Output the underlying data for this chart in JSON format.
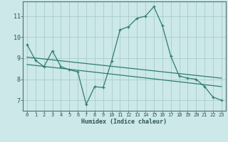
{
  "xlabel": "Humidex (Indice chaleur)",
  "ylabel": "",
  "bg_color": "#cce8e8",
  "grid_color": "#aacccc",
  "line_color": "#2e7d6e",
  "xlim": [
    -0.5,
    23.5
  ],
  "ylim": [
    6.5,
    11.7
  ],
  "yticks": [
    7,
    8,
    9,
    10,
    11
  ],
  "xticks": [
    0,
    1,
    2,
    3,
    4,
    5,
    6,
    7,
    8,
    9,
    10,
    11,
    12,
    13,
    14,
    15,
    16,
    17,
    18,
    19,
    20,
    21,
    22,
    23
  ],
  "line1_x": [
    0,
    1,
    2,
    3,
    4,
    5,
    6,
    7,
    8,
    9,
    10,
    11,
    12,
    13,
    14,
    15,
    16,
    17,
    18,
    19,
    20,
    21,
    22,
    23
  ],
  "line1_y": [
    9.65,
    8.9,
    8.6,
    9.35,
    8.6,
    8.45,
    8.35,
    6.8,
    7.65,
    7.6,
    8.85,
    10.35,
    10.5,
    10.9,
    11.0,
    11.45,
    10.55,
    9.1,
    8.15,
    8.05,
    8.0,
    7.65,
    7.15,
    7.0
  ],
  "line2_x": [
    0,
    23
  ],
  "line2_y": [
    9.05,
    8.05
  ],
  "line3_x": [
    0,
    23
  ],
  "line3_y": [
    8.7,
    7.65
  ]
}
